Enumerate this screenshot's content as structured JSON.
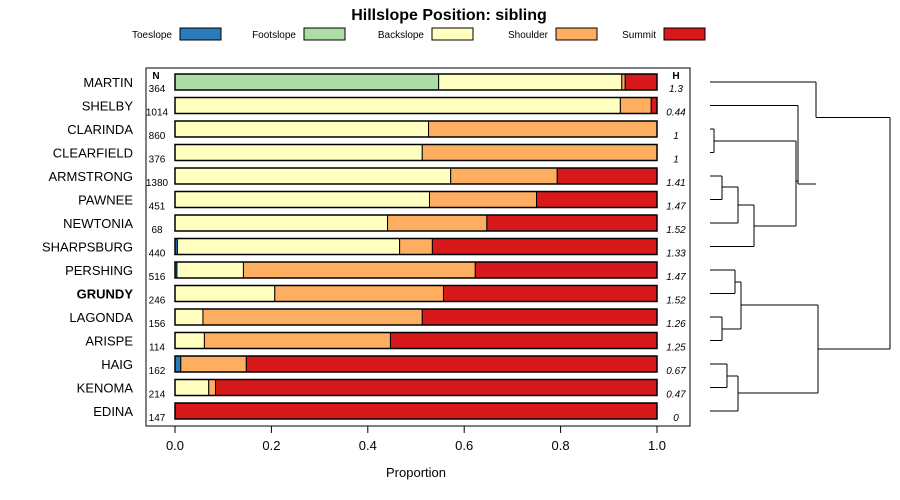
{
  "chart_data": {
    "type": "bar",
    "orientation": "horizontal",
    "stacked": true,
    "title": "Hillslope Position: sibling",
    "xlabel": "Proportion",
    "xlim": [
      0,
      1
    ],
    "xticks": [
      "0.0",
      "0.2",
      "0.4",
      "0.6",
      "0.8",
      "1.0"
    ],
    "legend": [
      {
        "name": "Toeslope",
        "color": "#2b7bba"
      },
      {
        "name": "Footslope",
        "color": "#abdda4"
      },
      {
        "name": "Backslope",
        "color": "#ffffbf"
      },
      {
        "name": "Shoulder",
        "color": "#fdae61"
      },
      {
        "name": "Summit",
        "color": "#d7191c"
      }
    ],
    "n_header": "N",
    "h_header": "H",
    "rows": [
      {
        "name": "MARTIN",
        "n": "364",
        "h": "1.3",
        "bold": false,
        "values": [
          0,
          0.547,
          0.38,
          0.007,
          0.066
        ]
      },
      {
        "name": "SHELBY",
        "n": "1014",
        "h": "0.44",
        "bold": false,
        "values": [
          0,
          0,
          0.924,
          0.064,
          0.012
        ]
      },
      {
        "name": "CLARINDA",
        "n": "860",
        "h": "1",
        "bold": false,
        "values": [
          0,
          0,
          0.526,
          0.474,
          0
        ]
      },
      {
        "name": "CLEARFIELD",
        "n": "376",
        "h": "1",
        "bold": false,
        "values": [
          0,
          0,
          0.513,
          0.487,
          0
        ]
      },
      {
        "name": "ARMSTRONG",
        "n": "1380",
        "h": "1.41",
        "bold": false,
        "values": [
          0,
          0,
          0.572,
          0.221,
          0.207
        ]
      },
      {
        "name": "PAWNEE",
        "n": "451",
        "h": "1.47",
        "bold": false,
        "values": [
          0,
          0,
          0.528,
          0.222,
          0.25
        ]
      },
      {
        "name": "NEWTONIA",
        "n": "68",
        "h": "1.52",
        "bold": false,
        "values": [
          0,
          0,
          0.441,
          0.206,
          0.353
        ]
      },
      {
        "name": "SHARPSBURG",
        "n": "440",
        "h": "1.33",
        "bold": false,
        "values": [
          0.005,
          0,
          0.461,
          0.068,
          0.466
        ]
      },
      {
        "name": "PERSHING",
        "n": "516",
        "h": "1.47",
        "bold": false,
        "values": [
          0.004,
          0,
          0.138,
          0.481,
          0.377
        ]
      },
      {
        "name": "GRUNDY",
        "n": "246",
        "h": "1.52",
        "bold": true,
        "values": [
          0,
          0,
          0.207,
          0.35,
          0.443
        ]
      },
      {
        "name": "LAGONDA",
        "n": "156",
        "h": "1.26",
        "bold": false,
        "values": [
          0,
          0,
          0.058,
          0.455,
          0.487
        ]
      },
      {
        "name": "ARISPE",
        "n": "114",
        "h": "1.25",
        "bold": false,
        "values": [
          0,
          0,
          0.061,
          0.386,
          0.553
        ]
      },
      {
        "name": "HAIG",
        "n": "162",
        "h": "0.67",
        "bold": false,
        "values": [
          0.012,
          0,
          0,
          0.136,
          0.852
        ]
      },
      {
        "name": "KENOMA",
        "n": "214",
        "h": "0.47",
        "bold": false,
        "values": [
          0,
          0,
          0.07,
          0.014,
          0.916
        ]
      },
      {
        "name": "EDINA",
        "n": "147",
        "h": "0",
        "bold": false,
        "values": [
          0,
          0,
          0,
          0,
          1
        ]
      }
    ]
  }
}
